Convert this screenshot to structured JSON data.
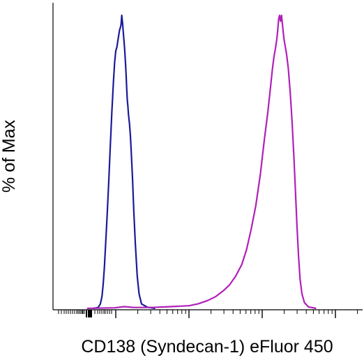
{
  "chart_data": {
    "type": "line",
    "title": "",
    "xlabel": "CD138 (Syndecan-1) eFluor 450",
    "ylabel": "% of Max",
    "x_scale": "biexponential",
    "x_tick_labels": [],
    "y_tick_labels": [],
    "ylim": [
      0,
      100
    ],
    "grid": false,
    "legend": "none",
    "x_positions_unit": "relative channel position (0-100 across plotted range)",
    "series": [
      {
        "color": "#1a1a9a",
        "points": [
          [
            13.0,
            0
          ],
          [
            14.6,
            0.3
          ],
          [
            15.3,
            1.5
          ],
          [
            15.8,
            4
          ],
          [
            16.2,
            8
          ],
          [
            16.6,
            14
          ],
          [
            17.0,
            22
          ],
          [
            17.5,
            32
          ],
          [
            18.0,
            43
          ],
          [
            18.5,
            55
          ],
          [
            19.0,
            67
          ],
          [
            19.5,
            77
          ],
          [
            19.9,
            84
          ],
          [
            20.3,
            88
          ],
          [
            20.6,
            89
          ],
          [
            20.9,
            91
          ],
          [
            21.2,
            93
          ],
          [
            21.5,
            95
          ],
          [
            21.8,
            96
          ],
          [
            22.0,
            97
          ],
          [
            22.2,
            100
          ],
          [
            22.5,
            97
          ],
          [
            22.8,
            93
          ],
          [
            23.1,
            89
          ],
          [
            23.4,
            84
          ],
          [
            23.6,
            80
          ],
          [
            23.8,
            75
          ],
          [
            24.0,
            71
          ],
          [
            24.2,
            69
          ],
          [
            24.4,
            66
          ],
          [
            24.7,
            63
          ],
          [
            25.0,
            59
          ],
          [
            25.3,
            53
          ],
          [
            25.7,
            44
          ],
          [
            26.1,
            33
          ],
          [
            26.6,
            22
          ],
          [
            27.2,
            11
          ],
          [
            27.8,
            5
          ],
          [
            28.6,
            1.5
          ],
          [
            30.5,
            0.4
          ],
          [
            33.0,
            0
          ]
        ]
      },
      {
        "color": "#b020b8",
        "points": [
          [
            11.0,
            0
          ],
          [
            20.0,
            0.2
          ],
          [
            23.0,
            0.6
          ],
          [
            26.0,
            0.3
          ],
          [
            32.0,
            0.3
          ],
          [
            38.0,
            0.6
          ],
          [
            44.0,
            0.9
          ],
          [
            47.0,
            1.6
          ],
          [
            50.0,
            2.7
          ],
          [
            52.5,
            4
          ],
          [
            55.0,
            6
          ],
          [
            57.0,
            8
          ],
          [
            59.0,
            11
          ],
          [
            61.0,
            15
          ],
          [
            62.5,
            20
          ],
          [
            64.0,
            27
          ],
          [
            65.5,
            35
          ],
          [
            67.0,
            46
          ],
          [
            68.2,
            57
          ],
          [
            69.4,
            67
          ],
          [
            70.2,
            75
          ],
          [
            70.9,
            82
          ],
          [
            71.4,
            86
          ],
          [
            71.9,
            89
          ],
          [
            72.3,
            92
          ],
          [
            72.6,
            95
          ],
          [
            72.9,
            99
          ],
          [
            73.2,
            100
          ],
          [
            73.5,
            98
          ],
          [
            73.8,
            100
          ],
          [
            74.1,
            97
          ],
          [
            74.4,
            94
          ],
          [
            74.6,
            92
          ],
          [
            74.9,
            90
          ],
          [
            75.4,
            87
          ],
          [
            76.0,
            82
          ],
          [
            76.6,
            74
          ],
          [
            77.2,
            64
          ],
          [
            77.8,
            52
          ],
          [
            78.3,
            40
          ],
          [
            78.8,
            28
          ],
          [
            79.3,
            18
          ],
          [
            79.8,
            10
          ],
          [
            80.4,
            5
          ],
          [
            81.2,
            2
          ],
          [
            82.5,
            0.5
          ],
          [
            85.0,
            0
          ]
        ]
      }
    ]
  }
}
